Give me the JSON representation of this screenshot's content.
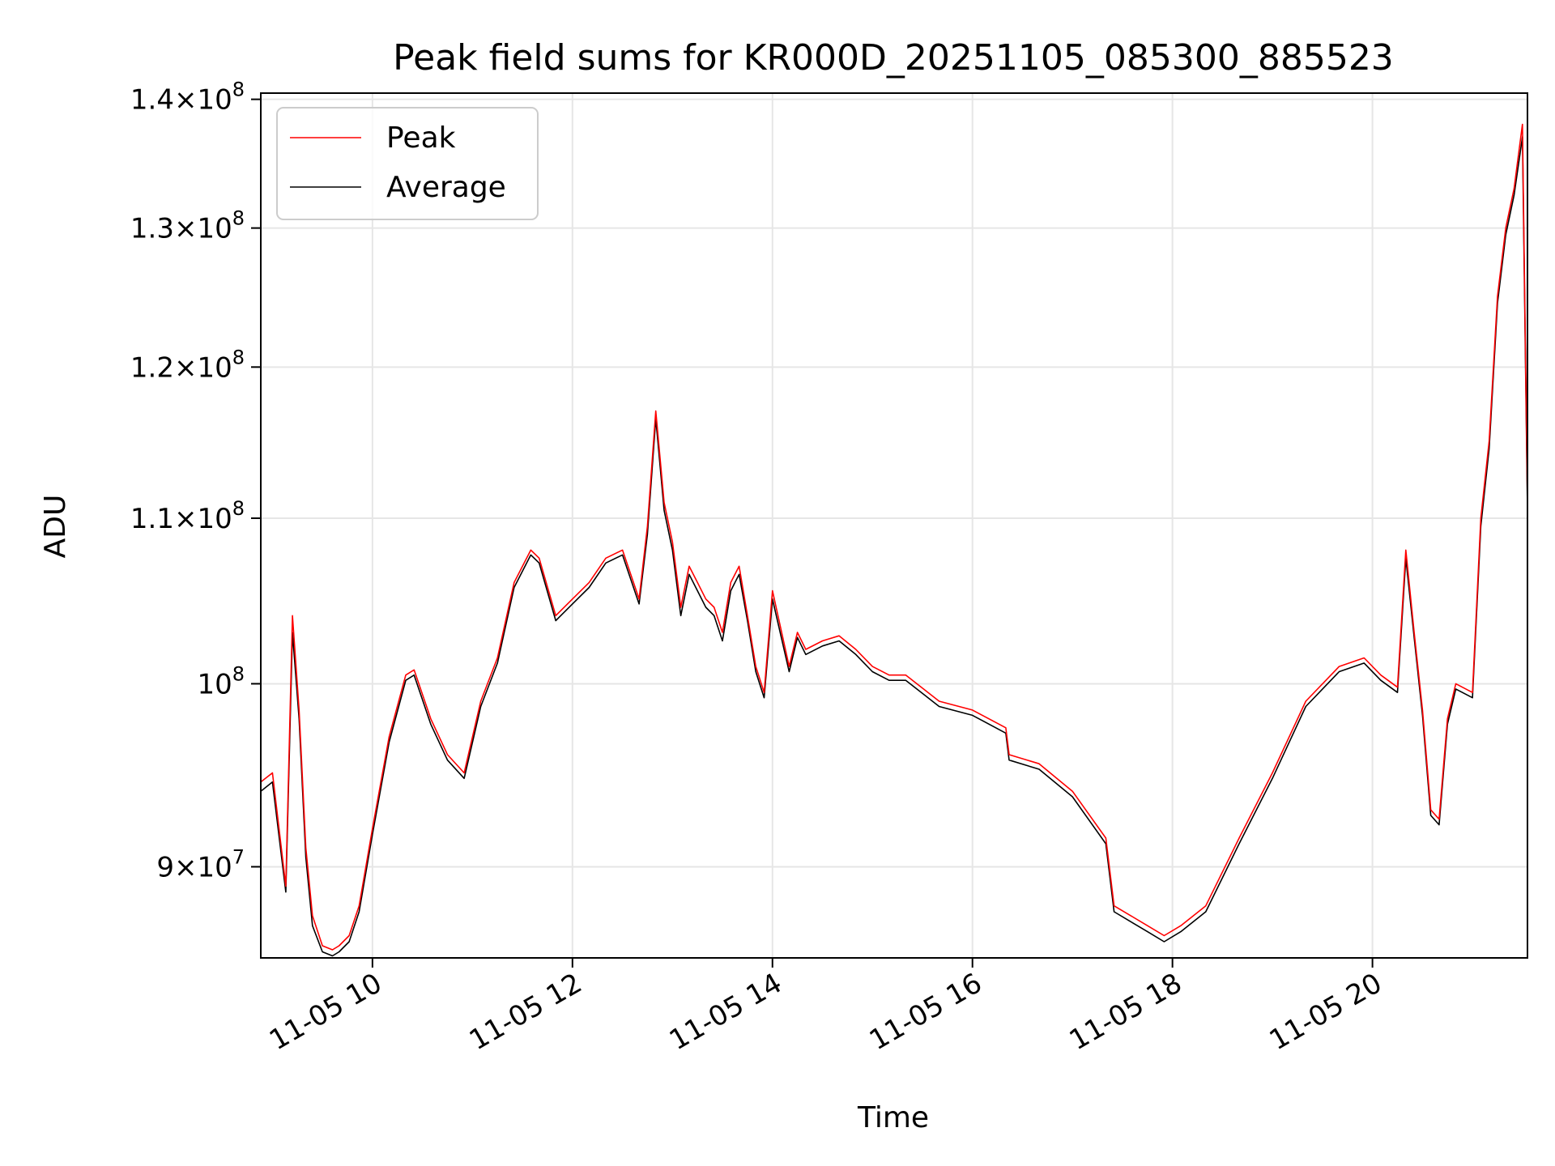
{
  "chart_data": {
    "type": "line",
    "title": "Peak field sums for KR000D_20251105_085300_885523",
    "xlabel": "Time",
    "ylabel": "ADU",
    "y_scale": "log",
    "x_range": [
      "2025-11-05 08:53",
      "2025-11-05 21:33"
    ],
    "ylim": [
      85400000,
      140500000
    ],
    "x_ticks": [
      {
        "t": "2025-11-05 10:00",
        "label": "11-05 10"
      },
      {
        "t": "2025-11-05 12:00",
        "label": "11-05 12"
      },
      {
        "t": "2025-11-05 14:00",
        "label": "11-05 14"
      },
      {
        "t": "2025-11-05 16:00",
        "label": "11-05 16"
      },
      {
        "t": "2025-11-05 18:00",
        "label": "11-05 18"
      },
      {
        "t": "2025-11-05 20:00",
        "label": "11-05 20"
      }
    ],
    "y_ticks": [
      {
        "value": 90000000,
        "mantissa": "9",
        "exponent": "7"
      },
      {
        "value": 100000000,
        "mantissa": "",
        "exponent": "8"
      },
      {
        "value": 110000000,
        "mantissa": "1.1",
        "exponent": "8"
      },
      {
        "value": 120000000,
        "mantissa": "1.2",
        "exponent": "8"
      },
      {
        "value": 130000000,
        "mantissa": "1.3",
        "exponent": "8"
      },
      {
        "value": 140000000,
        "mantissa": "1.4",
        "exponent": "8"
      }
    ],
    "grid": true,
    "legend_position": "top-left",
    "series": [
      {
        "name": "Peak",
        "color": "#ff0000",
        "x": [
          "2025-11-05 08:53",
          "2025-11-05 09:00",
          "2025-11-05 09:08",
          "2025-11-05 09:12",
          "2025-11-05 09:16",
          "2025-11-05 09:20",
          "2025-11-05 09:24",
          "2025-11-05 09:30",
          "2025-11-05 09:36",
          "2025-11-05 09:40",
          "2025-11-05 09:46",
          "2025-11-05 09:52",
          "2025-11-05 10:00",
          "2025-11-05 10:10",
          "2025-11-05 10:20",
          "2025-11-05 10:25",
          "2025-11-05 10:35",
          "2025-11-05 10:45",
          "2025-11-05 10:55",
          "2025-11-05 11:05",
          "2025-11-05 11:15",
          "2025-11-05 11:25",
          "2025-11-05 11:35",
          "2025-11-05 11:40",
          "2025-11-05 11:50",
          "2025-11-05 12:00",
          "2025-11-05 12:10",
          "2025-11-05 12:20",
          "2025-11-05 12:30",
          "2025-11-05 12:40",
          "2025-11-05 12:45",
          "2025-11-05 12:50",
          "2025-11-05 12:55",
          "2025-11-05 13:00",
          "2025-11-05 13:05",
          "2025-11-05 13:10",
          "2025-11-05 13:15",
          "2025-11-05 13:20",
          "2025-11-05 13:25",
          "2025-11-05 13:30",
          "2025-11-05 13:35",
          "2025-11-05 13:40",
          "2025-11-05 13:45",
          "2025-11-05 13:50",
          "2025-11-05 13:55",
          "2025-11-05 14:00",
          "2025-11-05 14:10",
          "2025-11-05 14:15",
          "2025-11-05 14:20",
          "2025-11-05 14:30",
          "2025-11-05 14:40",
          "2025-11-05 14:50",
          "2025-11-05 15:00",
          "2025-11-05 15:10",
          "2025-11-05 15:20",
          "2025-11-05 15:40",
          "2025-11-05 16:00",
          "2025-11-05 16:20",
          "2025-11-05 16:22",
          "2025-11-05 16:40",
          "2025-11-05 17:00",
          "2025-11-05 17:20",
          "2025-11-05 17:25",
          "2025-11-05 17:35",
          "2025-11-05 17:45",
          "2025-11-05 17:55",
          "2025-11-05 18:05",
          "2025-11-05 18:20",
          "2025-11-05 18:40",
          "2025-11-05 19:00",
          "2025-11-05 19:20",
          "2025-11-05 19:40",
          "2025-11-05 19:55",
          "2025-11-05 20:05",
          "2025-11-05 20:15",
          "2025-11-05 20:20",
          "2025-11-05 20:25",
          "2025-11-05 20:30",
          "2025-11-05 20:35",
          "2025-11-05 20:40",
          "2025-11-05 20:45",
          "2025-11-05 20:50",
          "2025-11-05 21:00",
          "2025-11-05 21:05",
          "2025-11-05 21:10",
          "2025-11-05 21:15",
          "2025-11-05 21:20",
          "2025-11-05 21:25",
          "2025-11-05 21:30",
          "2025-11-05 21:33"
        ],
        "values": [
          94500000,
          95000000,
          89000000,
          104000000,
          98500000,
          91000000,
          87500000,
          86000000,
          85800000,
          86000000,
          86500000,
          88000000,
          92000000,
          97000000,
          100500000,
          100800000,
          98000000,
          96000000,
          95000000,
          99000000,
          101500000,
          106000000,
          108000000,
          107500000,
          104000000,
          105000000,
          106000000,
          107500000,
          108000000,
          105000000,
          109500000,
          117000000,
          111000000,
          108500000,
          104500000,
          107000000,
          106000000,
          105000000,
          104500000,
          103000000,
          106000000,
          107000000,
          104000000,
          101000000,
          99500000,
          105500000,
          101000000,
          103000000,
          102000000,
          102500000,
          102800000,
          102000000,
          101000000,
          100500000,
          100500000,
          99000000,
          98500000,
          97500000,
          96000000,
          95500000,
          94000000,
          91500000,
          88000000,
          87500000,
          87000000,
          86500000,
          87000000,
          88000000,
          91500000,
          95000000,
          99000000,
          101000000,
          101500000,
          100500000,
          99800000,
          108000000,
          103000000,
          98500000,
          93000000,
          92500000,
          98000000,
          100000000,
          99500000,
          110000000,
          115000000,
          125000000,
          130000000,
          133000000,
          138000000,
          111000000
        ]
      },
      {
        "name": "Average",
        "color": "#000000",
        "x": [
          "2025-11-05 08:53",
          "2025-11-05 09:00",
          "2025-11-05 09:08",
          "2025-11-05 09:12",
          "2025-11-05 09:16",
          "2025-11-05 09:20",
          "2025-11-05 09:24",
          "2025-11-05 09:30",
          "2025-11-05 09:36",
          "2025-11-05 09:40",
          "2025-11-05 09:46",
          "2025-11-05 09:52",
          "2025-11-05 10:00",
          "2025-11-05 10:10",
          "2025-11-05 10:20",
          "2025-11-05 10:25",
          "2025-11-05 10:35",
          "2025-11-05 10:45",
          "2025-11-05 10:55",
          "2025-11-05 11:05",
          "2025-11-05 11:15",
          "2025-11-05 11:25",
          "2025-11-05 11:35",
          "2025-11-05 11:40",
          "2025-11-05 11:50",
          "2025-11-05 12:00",
          "2025-11-05 12:10",
          "2025-11-05 12:20",
          "2025-11-05 12:30",
          "2025-11-05 12:40",
          "2025-11-05 12:45",
          "2025-11-05 12:50",
          "2025-11-05 12:55",
          "2025-11-05 13:00",
          "2025-11-05 13:05",
          "2025-11-05 13:10",
          "2025-11-05 13:15",
          "2025-11-05 13:20",
          "2025-11-05 13:25",
          "2025-11-05 13:30",
          "2025-11-05 13:35",
          "2025-11-05 13:40",
          "2025-11-05 13:45",
          "2025-11-05 13:50",
          "2025-11-05 13:55",
          "2025-11-05 14:00",
          "2025-11-05 14:10",
          "2025-11-05 14:15",
          "2025-11-05 14:20",
          "2025-11-05 14:30",
          "2025-11-05 14:40",
          "2025-11-05 14:50",
          "2025-11-05 15:00",
          "2025-11-05 15:10",
          "2025-11-05 15:20",
          "2025-11-05 15:40",
          "2025-11-05 16:00",
          "2025-11-05 16:20",
          "2025-11-05 16:22",
          "2025-11-05 16:40",
          "2025-11-05 17:00",
          "2025-11-05 17:20",
          "2025-11-05 17:25",
          "2025-11-05 17:35",
          "2025-11-05 17:45",
          "2025-11-05 17:55",
          "2025-11-05 18:05",
          "2025-11-05 18:20",
          "2025-11-05 18:40",
          "2025-11-05 19:00",
          "2025-11-05 19:20",
          "2025-11-05 19:40",
          "2025-11-05 19:55",
          "2025-11-05 20:05",
          "2025-11-05 20:15",
          "2025-11-05 20:20",
          "2025-11-05 20:25",
          "2025-11-05 20:30",
          "2025-11-05 20:35",
          "2025-11-05 20:40",
          "2025-11-05 20:45",
          "2025-11-05 20:50",
          "2025-11-05 21:00",
          "2025-11-05 21:05",
          "2025-11-05 21:10",
          "2025-11-05 21:15",
          "2025-11-05 21:20",
          "2025-11-05 21:25",
          "2025-11-05 21:30",
          "2025-11-05 21:33"
        ],
        "values": [
          94000000,
          94500000,
          88700000,
          103000000,
          98000000,
          90500000,
          87000000,
          85700000,
          85500000,
          85700000,
          86200000,
          87700000,
          91700000,
          96700000,
          100200000,
          100500000,
          97700000,
          95700000,
          94700000,
          98700000,
          101200000,
          105700000,
          107700000,
          107200000,
          103700000,
          104700000,
          105700000,
          107200000,
          107700000,
          104700000,
          109000000,
          116500000,
          110500000,
          108000000,
          104000000,
          106500000,
          105500000,
          104500000,
          104000000,
          102500000,
          105500000,
          106500000,
          103700000,
          100700000,
          99200000,
          105000000,
          100700000,
          102700000,
          101700000,
          102200000,
          102500000,
          101700000,
          100700000,
          100200000,
          100200000,
          98700000,
          98200000,
          97200000,
          95700000,
          95200000,
          93700000,
          91200000,
          87700000,
          87200000,
          86700000,
          86200000,
          86700000,
          87700000,
          91200000,
          94700000,
          98700000,
          100700000,
          101200000,
          100200000,
          99500000,
          107500000,
          102700000,
          98200000,
          92700000,
          92200000,
          97700000,
          99700000,
          99200000,
          109500000,
          114500000,
          124500000,
          129500000,
          132500000,
          137000000,
          110500000
        ]
      }
    ]
  }
}
